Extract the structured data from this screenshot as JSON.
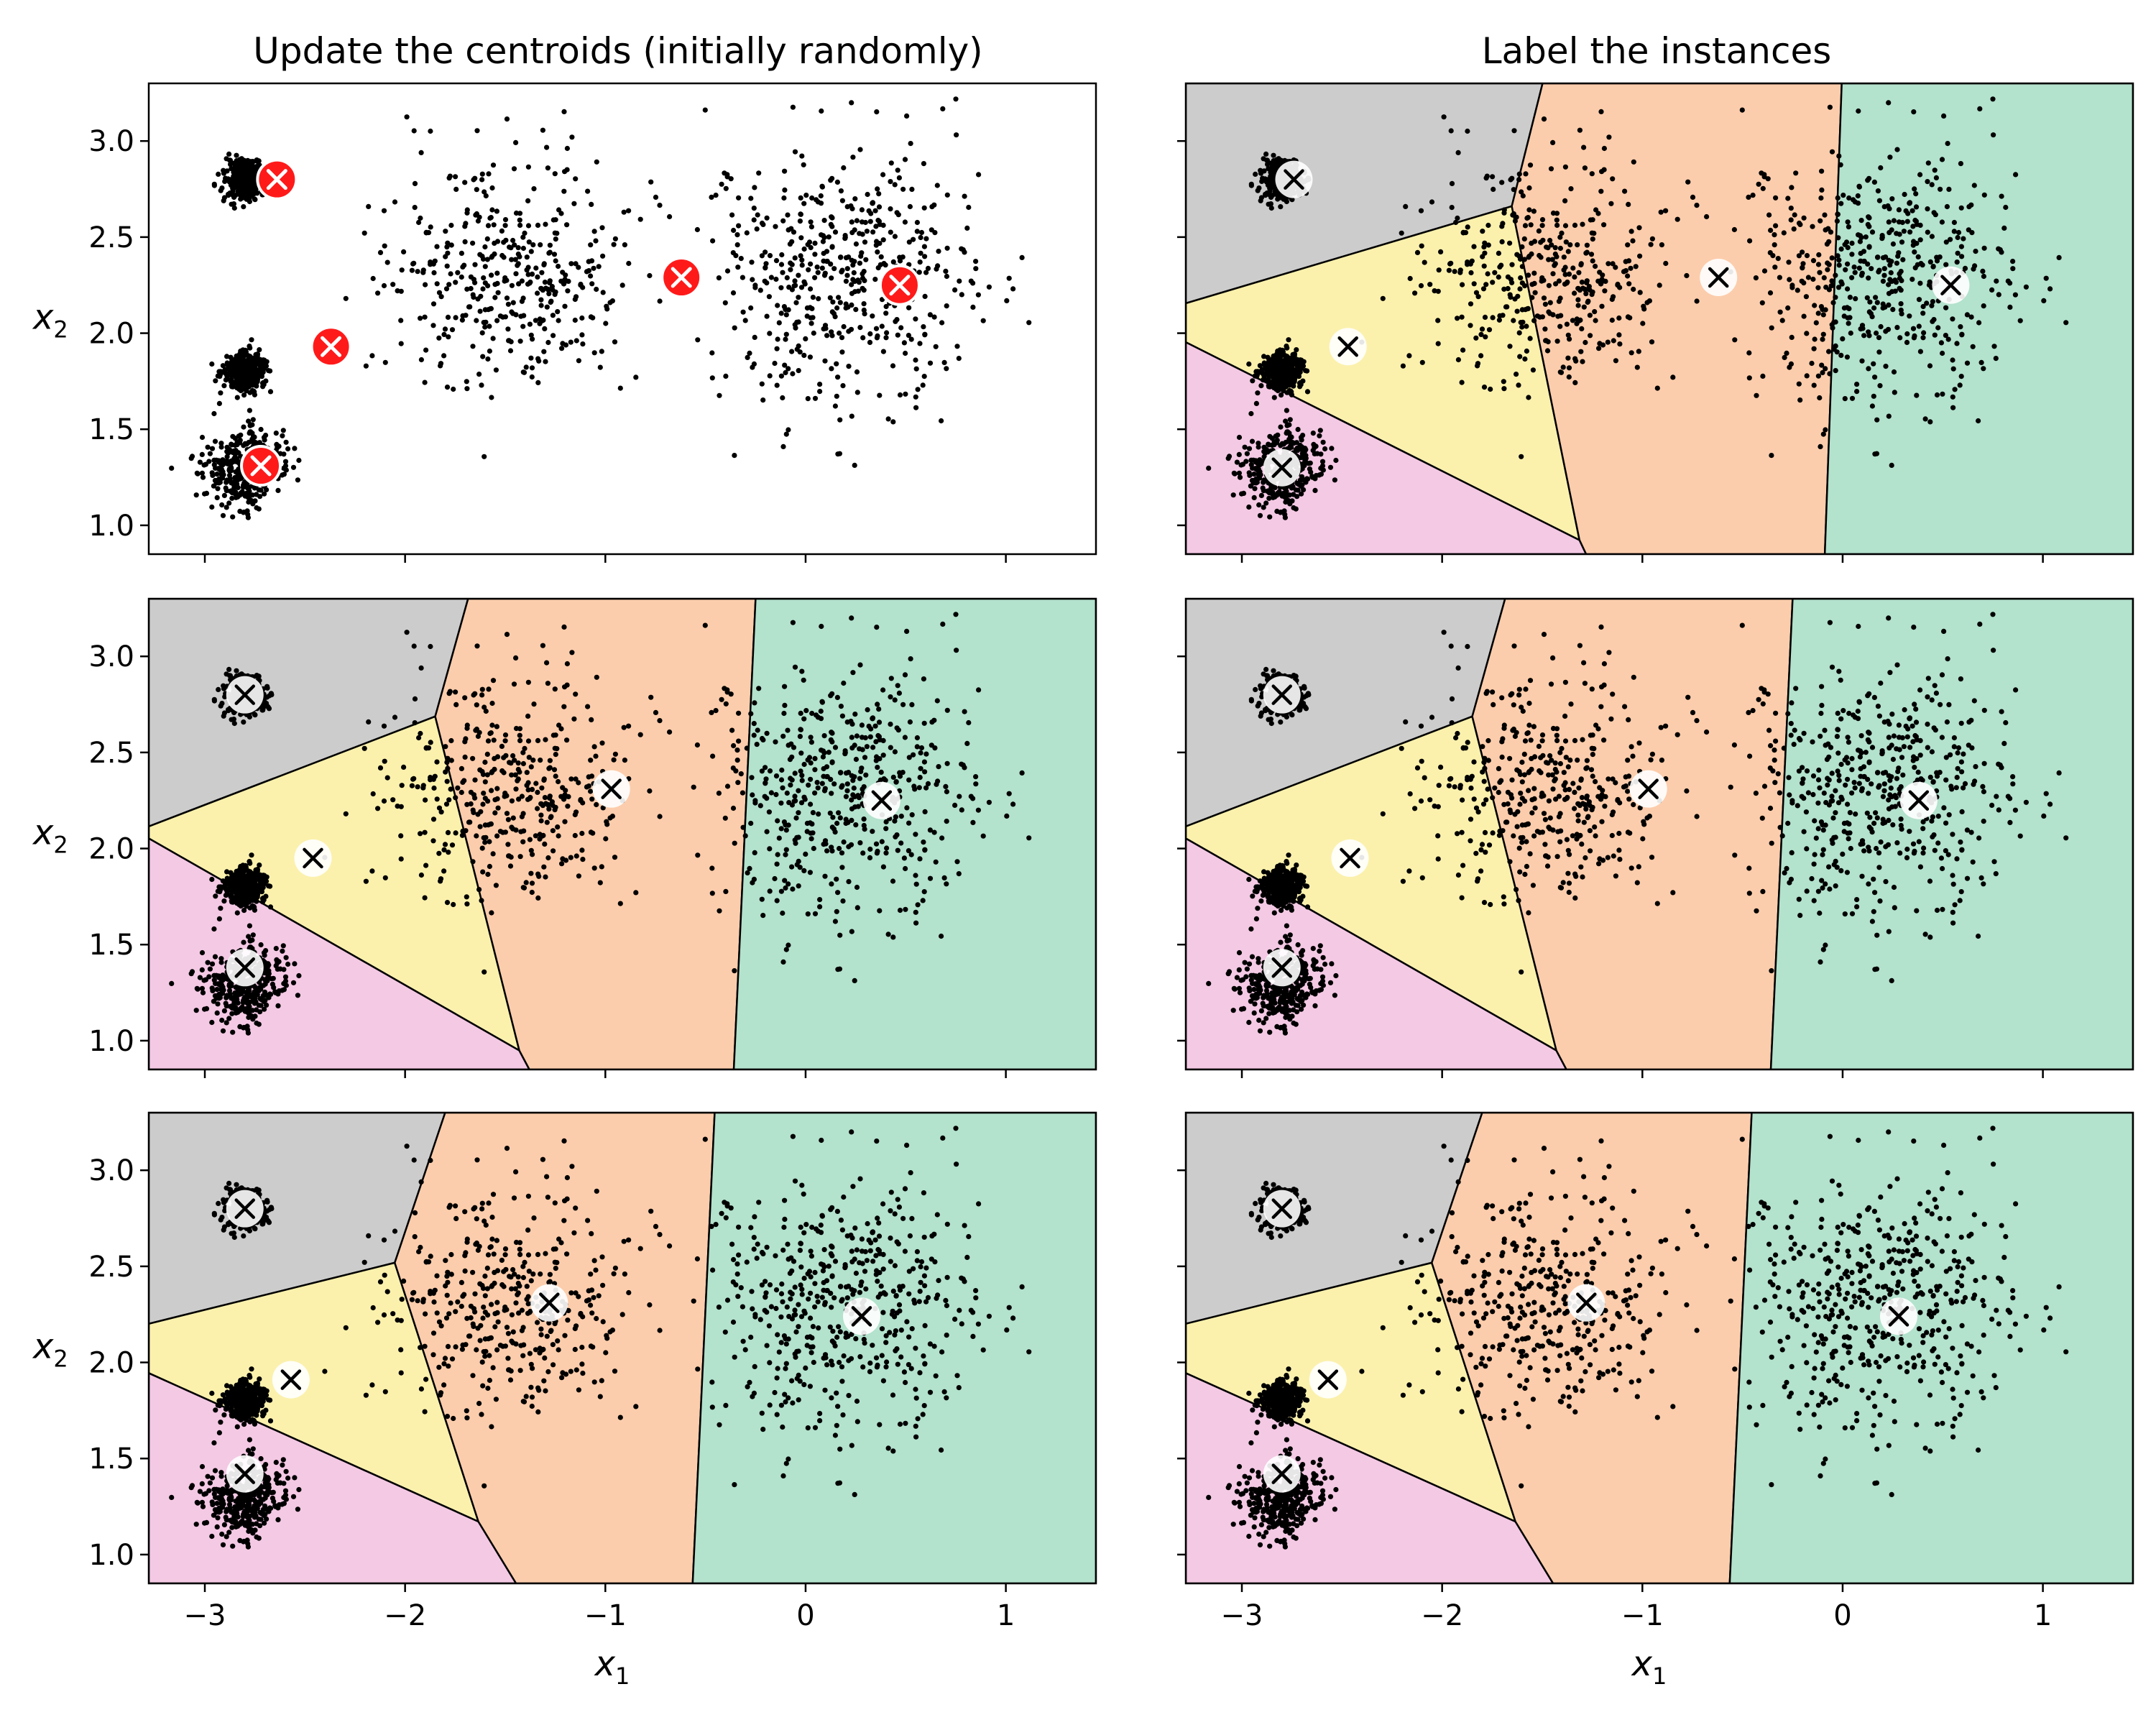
{
  "chart_data": {
    "type": "scatter",
    "layout": "3 rows x 2 columns",
    "titles": [
      "Update the centroids (initially randomly)",
      "Label the instances"
    ],
    "xlabel": "x",
    "xlabel_sub": "1",
    "ylabel": "x",
    "ylabel_sub": "2",
    "xlim": [
      -3.28,
      1.45
    ],
    "ylim": [
      0.85,
      3.3
    ],
    "xticks": [
      -3,
      -2,
      -1,
      0,
      1
    ],
    "xtick_labels": [
      "−3",
      "−2",
      "−1",
      "0",
      "1"
    ],
    "yticks": [
      1.0,
      1.5,
      2.0,
      2.5,
      3.0
    ],
    "ytick_labels": [
      "1.0",
      "1.5",
      "2.0",
      "2.5",
      "3.0"
    ],
    "grid": false,
    "colors": {
      "points": "#000000",
      "initial_centroid": "#ff1a1a",
      "centroid_halo": "#ffffff",
      "regions": [
        "#cccccc",
        "#fbf1ad",
        "#f4c9e4",
        "#fccdac",
        "#b3e2cd"
      ]
    },
    "blobs": [
      {
        "center": [
          -2.8,
          2.8
        ],
        "std": 0.05,
        "n": 400
      },
      {
        "center": [
          -2.8,
          1.8
        ],
        "std": 0.05,
        "n": 400
      },
      {
        "center": [
          -2.8,
          1.3
        ],
        "std": 0.1,
        "n": 400
      },
      {
        "center": [
          -1.5,
          2.3
        ],
        "std": 0.3,
        "n": 400
      },
      {
        "center": [
          0.2,
          2.3
        ],
        "std": 0.35,
        "n": 500
      }
    ],
    "panels": [
      {
        "row": 0,
        "col": 0,
        "show_regions": false,
        "initial": true,
        "centroids": [
          [
            -2.64,
            2.8
          ],
          [
            -2.37,
            1.93
          ],
          [
            -2.72,
            1.31
          ],
          [
            -0.62,
            2.29
          ],
          [
            0.47,
            2.25
          ]
        ]
      },
      {
        "row": 0,
        "col": 1,
        "show_regions": true,
        "initial": false,
        "centroids": [
          [
            -2.74,
            2.8
          ],
          [
            -2.47,
            1.93
          ],
          [
            -2.8,
            1.3
          ],
          [
            -0.62,
            2.29
          ],
          [
            0.54,
            2.25
          ]
        ]
      },
      {
        "row": 1,
        "col": 0,
        "show_regions": true,
        "initial": false,
        "centroids": [
          [
            -2.8,
            2.8
          ],
          [
            -2.46,
            1.95
          ],
          [
            -2.8,
            1.38
          ],
          [
            -0.97,
            2.31
          ],
          [
            0.38,
            2.25
          ]
        ]
      },
      {
        "row": 1,
        "col": 1,
        "show_regions": true,
        "initial": false,
        "centroids": [
          [
            -2.8,
            2.8
          ],
          [
            -2.46,
            1.95
          ],
          [
            -2.8,
            1.38
          ],
          [
            -0.97,
            2.31
          ],
          [
            0.38,
            2.25
          ]
        ]
      },
      {
        "row": 2,
        "col": 0,
        "show_regions": true,
        "initial": false,
        "centroids": [
          [
            -2.8,
            2.8
          ],
          [
            -2.57,
            1.91
          ],
          [
            -2.8,
            1.42
          ],
          [
            -1.28,
            2.31
          ],
          [
            0.28,
            2.24
          ]
        ]
      },
      {
        "row": 2,
        "col": 1,
        "show_regions": true,
        "initial": false,
        "centroids": [
          [
            -2.8,
            2.8
          ],
          [
            -2.57,
            1.91
          ],
          [
            -2.8,
            1.42
          ],
          [
            -1.28,
            2.31
          ],
          [
            0.28,
            2.24
          ]
        ]
      }
    ]
  }
}
